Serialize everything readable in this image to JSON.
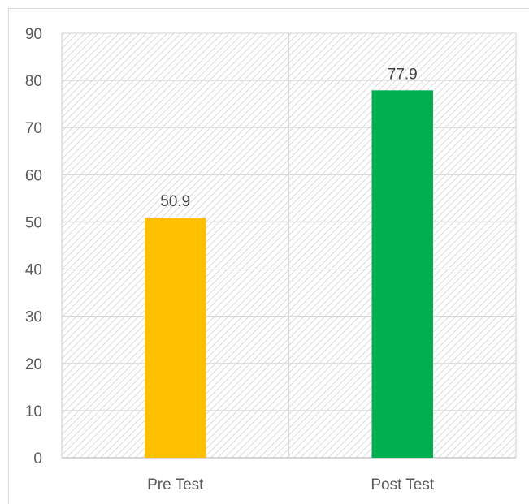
{
  "chart_data": {
    "type": "bar",
    "categories": [
      "Pre Test",
      "Post Test"
    ],
    "values": [
      50.9,
      77.9
    ],
    "data_labels": [
      "50.9",
      "77.9"
    ],
    "colors": [
      "#ffc000",
      "#00b050"
    ],
    "ylim": [
      0,
      90
    ],
    "yticks": [
      0,
      10,
      20,
      30,
      40,
      50,
      60,
      70,
      80,
      90
    ],
    "title": "",
    "xlabel": "",
    "ylabel": "",
    "grid": true,
    "legend": "none",
    "plot_background": "diagonal-hatch",
    "gridline_color": "#d9d9d9",
    "hatch_color": "#c8c8c8"
  }
}
